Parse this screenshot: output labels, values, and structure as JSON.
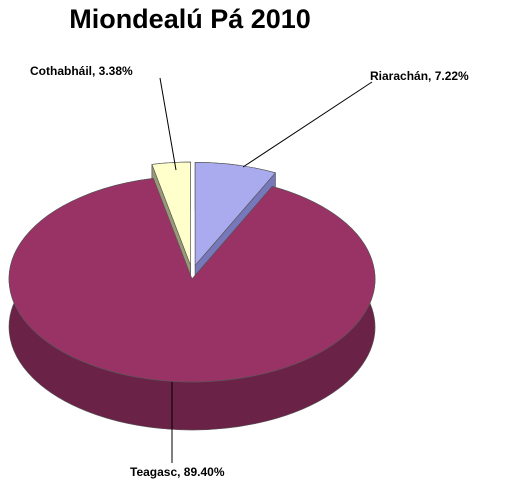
{
  "chart_data": {
    "type": "pie",
    "title": "Miondealú Pá 2010",
    "slices": [
      {
        "label": "Riarachán",
        "value": 7.22,
        "data_label": "Riarachán, 7.22%",
        "color": "#aaaaee",
        "side_color": "#7777bb",
        "exploded": true
      },
      {
        "label": "Teagasc",
        "value": 89.4,
        "data_label": "Teagasc, 89.40%",
        "color": "#993366",
        "side_color": "#6b2247",
        "exploded": false
      },
      {
        "label": "Cothabháil",
        "value": 3.38,
        "data_label": "Cothabháil, 3.38%",
        "color": "#ffffcc",
        "side_color": "#999977",
        "exploded": true
      }
    ],
    "three_d": true,
    "legend": "none"
  }
}
